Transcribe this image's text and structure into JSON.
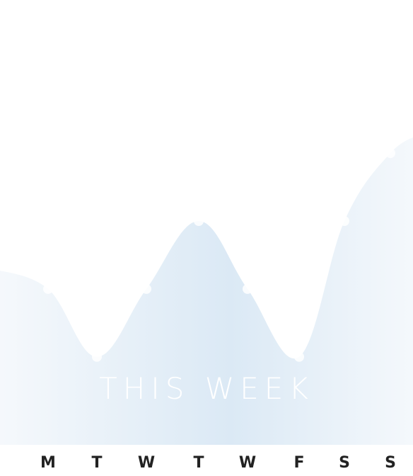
{
  "chart_data": {
    "type": "area",
    "title": "THIS WEEK",
    "categories": [
      "M",
      "T",
      "W",
      "T",
      "W",
      "F",
      "S",
      "S"
    ],
    "values": [
      62,
      35,
      62,
      89,
      62,
      35,
      89,
      116
    ],
    "ylim": [
      0,
      180
    ],
    "grid": false,
    "legend": "none"
  },
  "colors": {
    "background": "#ffffff",
    "area_center": "#dbe9f5",
    "area_edge": "#f6f9fc",
    "point": "#ffffff",
    "title": "#ffffff",
    "tick_label": "#222222"
  }
}
